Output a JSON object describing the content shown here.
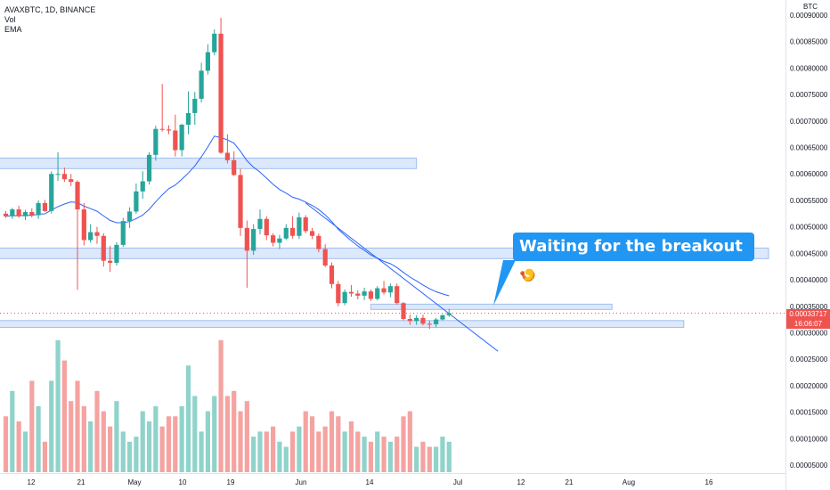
{
  "legend": {
    "symbol": "AVAXBTC, 1D, BINANCE",
    "vol": "Vol",
    "ema": "EMA"
  },
  "axis_unit": "BTC",
  "callout": {
    "text": "Waiting for the breakout",
    "emoji": "🍤"
  },
  "price_tag": {
    "price": "0.00033717",
    "countdown": "16:06:07"
  },
  "colors": {
    "up": "#26a69a",
    "down": "#ef5350",
    "vol_up": "#8fd3cb",
    "vol_down": "#f5a3a1",
    "zone": "#d6e4fb",
    "zone_border": "#90b4ee",
    "ema": "#2962ff",
    "callout": "#2196f3"
  },
  "chart_data": {
    "type": "candlestick",
    "x_ticks": [
      "12",
      "21",
      "May",
      "10",
      "19",
      "Jun",
      "14",
      "Jul",
      "12",
      "21",
      "Aug",
      "16"
    ],
    "y_ticks": [
      "0.00090000",
      "0.00085000",
      "0.00080000",
      "0.00075000",
      "0.00070000",
      "0.00065000",
      "0.00060000",
      "0.00055000",
      "0.00050000",
      "0.00045000",
      "0.00040000",
      "0.00035000",
      "0.00030000",
      "0.00025000",
      "0.00020000",
      "0.00015000",
      "0.00010000",
      "0.00005000"
    ],
    "ylim": [
      2.5e-05,
      0.00091
    ],
    "zones": [
      {
        "from": 0.00061,
        "to": 0.00063,
        "x_end_index": 63
      },
      {
        "from": 0.00044,
        "to": 0.00046,
        "x_end_index": 117
      },
      {
        "from": 0.000344,
        "to": 0.000354,
        "x_end_index": 93,
        "x_start_index": 56
      },
      {
        "from": 0.00031,
        "to": 0.000323,
        "x_end_index": 104
      }
    ],
    "candles": [
      [
        0.000525,
        0.00053,
        0.000517,
        0.00052
      ],
      [
        0.00052,
        0.000536,
        0.000515,
        0.000533
      ],
      [
        0.000533,
        0.00054,
        0.000517,
        0.00052
      ],
      [
        0.00052,
        0.000532,
        0.000513,
        0.000528
      ],
      [
        0.000528,
        0.000535,
        0.000518,
        0.000522
      ],
      [
        0.000522,
        0.00055,
        0.000515,
        0.000545
      ],
      [
        0.000545,
        0.000551,
        0.000528,
        0.00053
      ],
      [
        0.00053,
        0.000605,
        0.000525,
        0.0006
      ],
      [
        0.0006,
        0.000641,
        0.000587,
        0.0006
      ],
      [
        0.0006,
        0.000612,
        0.000585,
        0.00059
      ],
      [
        0.00059,
        0.0006,
        0.000577,
        0.000585
      ],
      [
        0.000585,
        0.000588,
        0.000381,
        0.000533
      ],
      [
        0.000533,
        0.000545,
        0.000465,
        0.000475
      ],
      [
        0.000475,
        0.000505,
        0.00047,
        0.00049
      ],
      [
        0.00049,
        0.0005,
        0.000468,
        0.000483
      ],
      [
        0.000483,
        0.000488,
        0.000425,
        0.000436
      ],
      [
        0.000436,
        0.000464,
        0.000415,
        0.000432
      ],
      [
        0.000432,
        0.000471,
        0.000427,
        0.000466
      ],
      [
        0.000466,
        0.000517,
        0.000462,
        0.000511
      ],
      [
        0.000511,
        0.000537,
        0.000498,
        0.000529
      ],
      [
        0.000529,
        0.000582,
        0.000525,
        0.000567
      ],
      [
        0.000567,
        0.000605,
        0.000553,
        0.000586
      ],
      [
        0.000586,
        0.000641,
        0.00058,
        0.000636
      ],
      [
        0.000636,
        0.000691,
        0.000625,
        0.000685
      ],
      [
        0.000685,
        0.00077,
        0.00068,
        0.000684
      ],
      [
        0.000684,
        0.000692,
        0.000675,
        0.000682
      ],
      [
        0.000682,
        0.000712,
        0.000633,
        0.000645
      ],
      [
        0.000645,
        0.000695,
        0.000633,
        0.000693
      ],
      [
        0.000693,
        0.000756,
        0.000675,
        0.000715
      ],
      [
        0.000715,
        0.000755,
        0.000693,
        0.000742
      ],
      [
        0.000742,
        0.00081,
        0.000735,
        0.000795
      ],
      [
        0.000795,
        0.000845,
        0.000788,
        0.00083
      ],
      [
        0.00083,
        0.000873,
        0.000824,
        0.000865
      ],
      [
        0.000865,
        0.000895,
        0.000638,
        0.00064
      ],
      [
        0.00064,
        0.000675,
        0.00062,
        0.000626
      ],
      [
        0.000626,
        0.000643,
        0.000596,
        0.000598
      ],
      [
        0.000598,
        0.00061,
        0.000483,
        0.000498
      ],
      [
        0.000498,
        0.000512,
        0.000385,
        0.000455
      ],
      [
        0.000455,
        0.000505,
        0.000447,
        0.000496
      ],
      [
        0.000496,
        0.000533,
        0.000486,
        0.000515
      ],
      [
        0.000515,
        0.00052,
        0.000475,
        0.000484
      ],
      [
        0.000484,
        0.000488,
        0.000463,
        0.00047
      ],
      [
        0.00047,
        0.000485,
        0.000458,
        0.000478
      ],
      [
        0.000478,
        0.000505,
        0.000475,
        0.000498
      ],
      [
        0.000498,
        0.00052,
        0.000478,
        0.000483
      ],
      [
        0.000483,
        0.000527,
        0.000477,
        0.000518
      ],
      [
        0.000518,
        0.000522,
        0.000488,
        0.000492
      ],
      [
        0.000492,
        0.000498,
        0.000477,
        0.000483
      ],
      [
        0.000483,
        0.000488,
        0.000452,
        0.000458
      ],
      [
        0.000458,
        0.000467,
        0.000424,
        0.000427
      ],
      [
        0.000427,
        0.000433,
        0.000384,
        0.000392
      ],
      [
        0.000392,
        0.000398,
        0.00035,
        0.000356
      ],
      [
        0.000356,
        0.000382,
        0.000352,
        0.000377
      ],
      [
        0.000377,
        0.00039,
        0.000368,
        0.000374
      ],
      [
        0.000374,
        0.00038,
        0.000363,
        0.00037
      ],
      [
        0.00037,
        0.000385,
        0.000362,
        0.000378
      ],
      [
        0.000378,
        0.000382,
        0.00036,
        0.000364
      ],
      [
        0.000364,
        0.000388,
        0.000361,
        0.000384
      ],
      [
        0.000384,
        0.000398,
        0.000372,
        0.000376
      ],
      [
        0.000376,
        0.000393,
        0.000367,
        0.000388
      ],
      [
        0.000388,
        0.000393,
        0.000353,
        0.000356
      ],
      [
        0.000356,
        0.000358,
        0.000323,
        0.000326
      ],
      [
        0.000326,
        0.000334,
        0.000315,
        0.000322
      ],
      [
        0.000322,
        0.000333,
        0.000315,
        0.000328
      ],
      [
        0.000328,
        0.000334,
        0.000314,
        0.000317
      ],
      [
        0.000317,
        0.000323,
        0.000307,
        0.000316
      ],
      [
        0.000316,
        0.000328,
        0.00031,
        0.000325
      ],
      [
        0.000325,
        0.000335,
        0.000323,
        0.000333
      ],
      [
        0.000333,
        0.000345,
        0.00033,
        0.000337
      ]
    ],
    "volumes": [
      0.11,
      0.16,
      0.1,
      0.08,
      0.18,
      0.13,
      0.06,
      0.18,
      0.26,
      0.22,
      0.14,
      0.18,
      0.13,
      0.1,
      0.16,
      0.12,
      0.09,
      0.14,
      0.08,
      0.06,
      0.07,
      0.12,
      0.1,
      0.13,
      0.09,
      0.11,
      0.11,
      0.13,
      0.21,
      0.15,
      0.08,
      0.12,
      0.15,
      0.26,
      0.15,
      0.16,
      0.12,
      0.14,
      0.07,
      0.08,
      0.08,
      0.09,
      0.06,
      0.05,
      0.08,
      0.09,
      0.12,
      0.11,
      0.08,
      0.09,
      0.12,
      0.11,
      0.08,
      0.1,
      0.08,
      0.07,
      0.06,
      0.08,
      0.07,
      0.06,
      0.07,
      0.11,
      0.12,
      0.05,
      0.06,
      0.05,
      0.05,
      0.07,
      0.06
    ]
  }
}
